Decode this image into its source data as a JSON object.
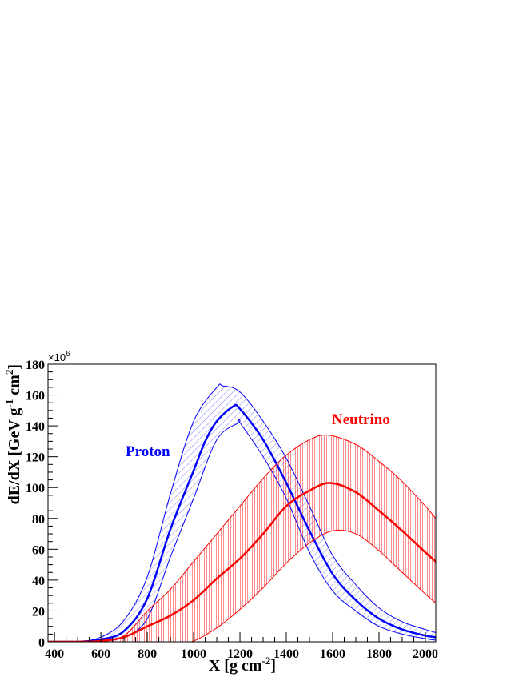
{
  "chart_data": {
    "type": "line",
    "title": "",
    "xlabel": "X [g cm",
    "xlabel_sup": "-2",
    "xlabel_end": "]",
    "ylabel": "dE/dX [GeV g",
    "ylabel_sup1": "-1",
    "ylabel_mid": " cm",
    "ylabel_sup2": "2",
    "ylabel_end": "]",
    "y_multiplier": "×10",
    "y_multiplier_exp": "6",
    "xlim": [
      372,
      2045
    ],
    "ylim": [
      0,
      180
    ],
    "x_ticks": [
      400,
      600,
      800,
      1000,
      1200,
      1400,
      1600,
      1800,
      2000
    ],
    "y_ticks": [
      0,
      20,
      40,
      60,
      80,
      100,
      120,
      140,
      160,
      180
    ],
    "grid": false,
    "legend": "none",
    "series": [
      {
        "name": "Proton",
        "color": "#0000ff",
        "fill": "diagonal-hatch",
        "central": {
          "x": [
            372,
            500,
            600,
            700,
            800,
            900,
            1000,
            1050,
            1100,
            1170,
            1200,
            1300,
            1400,
            1500,
            1600,
            1700,
            1800,
            1900,
            2000,
            2045
          ],
          "y": [
            0,
            0,
            1.5,
            7,
            28,
            73,
            111,
            130,
            143,
            152.5,
            151,
            131,
            103,
            72,
            44,
            27,
            15,
            8,
            4,
            3
          ]
        },
        "upper": {
          "x": [
            372,
            500,
            600,
            700,
            800,
            900,
            1000,
            1100,
            1125,
            1200,
            1300,
            1400,
            1500,
            1600,
            1700,
            1800,
            1900,
            2000,
            2045
          ],
          "y": [
            0,
            0.2,
            3,
            14,
            42,
            96,
            143,
            165,
            166,
            162,
            143,
            119,
            88,
            56,
            37,
            22,
            13,
            8,
            6
          ]
        },
        "lower": {
          "x": [
            372,
            500,
            600,
            700,
            800,
            900,
            1000,
            1100,
            1195,
            1200,
            1300,
            1400,
            1500,
            1600,
            1700,
            1800,
            1900,
            2000,
            2045
          ],
          "y": [
            0,
            0,
            0.5,
            3,
            15,
            55,
            93,
            131,
            142,
            142,
            120,
            93,
            58,
            33,
            20,
            10,
            5,
            2,
            1
          ]
        }
      },
      {
        "name": "Neutrino",
        "color": "#ff0000",
        "fill": "vertical-hatch",
        "central": {
          "x": [
            372,
            500,
            600,
            700,
            800,
            900,
            1000,
            1100,
            1200,
            1300,
            1400,
            1500,
            1590,
            1700,
            1800,
            1900,
            2000,
            2045
          ],
          "y": [
            0,
            0,
            0.5,
            3,
            10,
            17,
            27,
            41,
            54,
            70,
            88,
            98,
            103,
            97,
            85,
            72,
            58,
            52
          ]
        },
        "upper": {
          "x": [
            372,
            500,
            600,
            700,
            800,
            900,
            1000,
            1100,
            1200,
            1300,
            1400,
            1500,
            1580,
            1700,
            1800,
            1900,
            2000,
            2045
          ],
          "y": [
            0,
            0,
            0.8,
            4,
            20,
            34,
            52,
            70,
            88,
            106,
            121,
            131,
            134,
            128,
            117,
            104,
            88,
            80
          ]
        },
        "lower": {
          "x": [
            372,
            900,
            990,
            1100,
            1200,
            1300,
            1400,
            1500,
            1600,
            1700,
            1800,
            1900,
            2000,
            2045
          ],
          "y": [
            0,
            0,
            0,
            9,
            21,
            35,
            51,
            64,
            72,
            70,
            59,
            45,
            31,
            25
          ]
        }
      }
    ]
  }
}
